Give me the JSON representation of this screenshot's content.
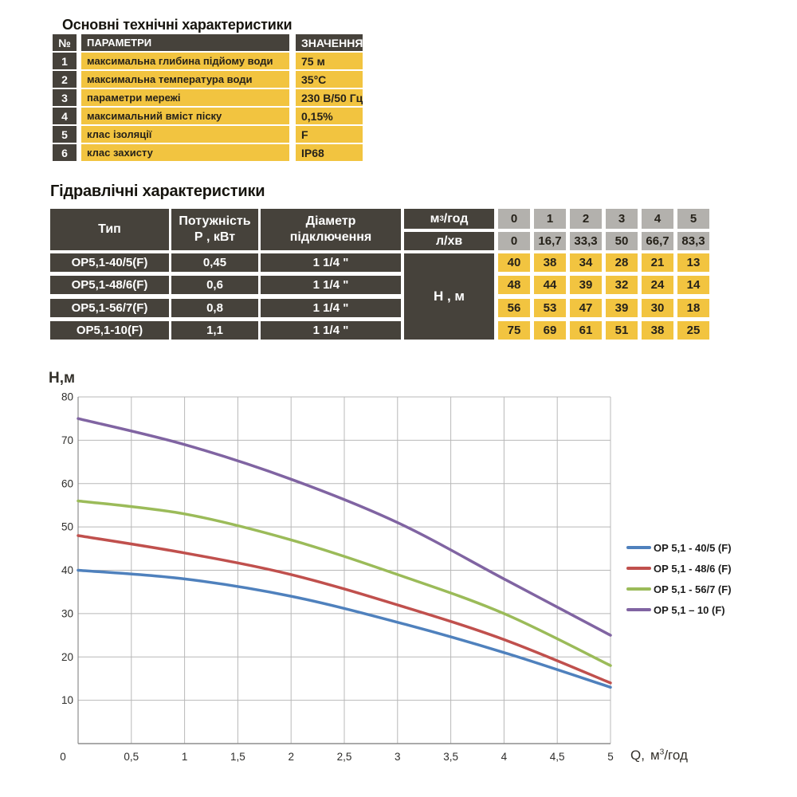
{
  "colors": {
    "dark_cell": "#46423b",
    "yellow_cell": "#f2c440",
    "gray_cell": "#b3b1ad",
    "grid": "#b8b8b8",
    "axis": "#8e8e8e"
  },
  "tech_table": {
    "title": "Основні технічні характеристики",
    "headers": {
      "num": "№",
      "param": "ПАРАМЕТРИ",
      "value": "ЗНАЧЕННЯ"
    },
    "rows": [
      {
        "num": "1",
        "param": "максимальна глибина підйому води",
        "value": "75 м"
      },
      {
        "num": "2",
        "param": "максимальна температура води",
        "value": "35°С"
      },
      {
        "num": "3",
        "param": "параметри мережі",
        "value": "230 В/50 Гц"
      },
      {
        "num": "4",
        "param": "максимальний вміст піску",
        "value": "0,15%"
      },
      {
        "num": "5",
        "param": "клас ізоляції",
        "value": "F"
      },
      {
        "num": "6",
        "param": "клас захисту",
        "value": "IP68"
      }
    ]
  },
  "hydraulic_table": {
    "title": "Гідравлічні характеристики",
    "col_type": "Тип",
    "col_power_line1": "Потужність",
    "col_power_line2": "Р , кВт",
    "col_diam_line1": "Діаметр",
    "col_diam_line2": "підключення",
    "flow_unit1": {
      "base": "м",
      "sup": "3",
      "post": "/год"
    },
    "flow_unit2": "л/хв",
    "head_label": "Н , м",
    "flow_m3h": [
      "0",
      "1",
      "2",
      "3",
      "4",
      "5"
    ],
    "flow_lmin": [
      "0",
      "16,7",
      "33,3",
      "50",
      "66,7",
      "83,3"
    ],
    "rows": [
      {
        "type": "ОР5,1-40/5(F)",
        "power": "0,45",
        "diameter": "1 1/4 \"",
        "heads": [
          "40",
          "38",
          "34",
          "28",
          "21",
          "13"
        ]
      },
      {
        "type": "ОР5,1-48/6(F)",
        "power": "0,6",
        "diameter": "1 1/4 \"",
        "heads": [
          "48",
          "44",
          "39",
          "32",
          "24",
          "14"
        ]
      },
      {
        "type": "ОР5,1-56/7(F)",
        "power": "0,8",
        "diameter": "1 1/4 \"",
        "heads": [
          "56",
          "53",
          "47",
          "39",
          "30",
          "18"
        ]
      },
      {
        "type": "ОР5,1-10(F)",
        "power": "1,1",
        "diameter": "1 1/4 \"",
        "heads": [
          "75",
          "69",
          "61",
          "51",
          "38",
          "25"
        ]
      }
    ]
  },
  "chart_data": {
    "type": "line",
    "ylabel": "Н,м",
    "xlabel": {
      "q": "Q,",
      "unit_pre": "м",
      "sup": "3",
      "post": "/год"
    },
    "x": [
      0,
      1,
      2,
      3,
      4,
      5
    ],
    "series": [
      {
        "name": "ОР 5,1 - 40/5 (F)",
        "color": "#4F81BD",
        "values": [
          40,
          38,
          34,
          28,
          21,
          13
        ]
      },
      {
        "name": "ОР 5,1 - 48/6 (F)",
        "color": "#C0504D",
        "values": [
          48,
          44,
          39,
          32,
          24,
          14
        ]
      },
      {
        "name": "ОР 5,1 - 56/7 (F)",
        "color": "#9BBB59",
        "values": [
          56,
          53,
          47,
          39,
          30,
          18
        ]
      },
      {
        "name": "ОР 5,1 – 10 (F)",
        "color": "#8064A2",
        "values": [
          75,
          69,
          61,
          51,
          38,
          25
        ]
      }
    ],
    "xlim": [
      0,
      5
    ],
    "ylim": [
      0,
      80
    ],
    "x_ticks": [
      "0",
      "0,5",
      "1",
      "1,5",
      "2",
      "2,5",
      "3",
      "3,5",
      "4",
      "4,5",
      "5"
    ],
    "x_tick_step": 0.5,
    "y_ticks": [
      80,
      70,
      60,
      50,
      40,
      30,
      20,
      10
    ],
    "grid": true,
    "legend_position": "right"
  }
}
